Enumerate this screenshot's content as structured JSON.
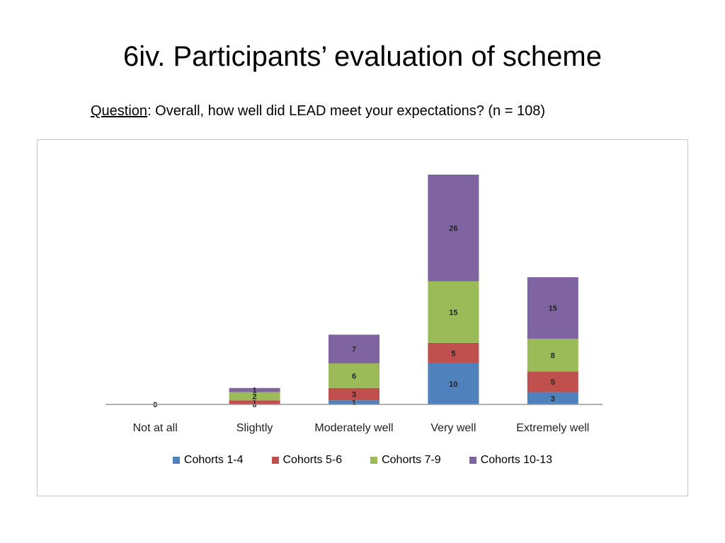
{
  "slide": {
    "title": "6iv. Participants’ evaluation of scheme",
    "question_label": "Question",
    "question_text": ": Overall, how well did LEAD meet your expectations? (n = 108)"
  },
  "chart_data": {
    "type": "bar",
    "stacked": true,
    "categories": [
      "Not at all",
      "Slightly",
      "Moderately well",
      "Very well",
      "Extremely well"
    ],
    "series": [
      {
        "name": "Cohorts 1-4",
        "color": "#4f81bd",
        "values": [
          0,
          0,
          1,
          10,
          3
        ]
      },
      {
        "name": "Cohorts 5-6",
        "color": "#c0504d",
        "values": [
          0,
          1,
          3,
          5,
          5
        ]
      },
      {
        "name": "Cohorts 7-9",
        "color": "#9bbb59",
        "values": [
          0,
          2,
          6,
          15,
          8
        ]
      },
      {
        "name": "Cohorts 10-13",
        "color": "#8064a2",
        "values": [
          0,
          1,
          7,
          26,
          15
        ]
      }
    ],
    "data_labels": [
      [
        "0",
        "0",
        "1",
        "10",
        "3"
      ],
      [
        "",
        "1",
        "3",
        "5",
        "5"
      ],
      [
        "",
        "2",
        "6",
        "15",
        "8"
      ],
      [
        "",
        "1",
        "7",
        "26",
        "15"
      ]
    ],
    "ylim": [
      0,
      56
    ],
    "grid": false,
    "legend_position": "bottom"
  }
}
